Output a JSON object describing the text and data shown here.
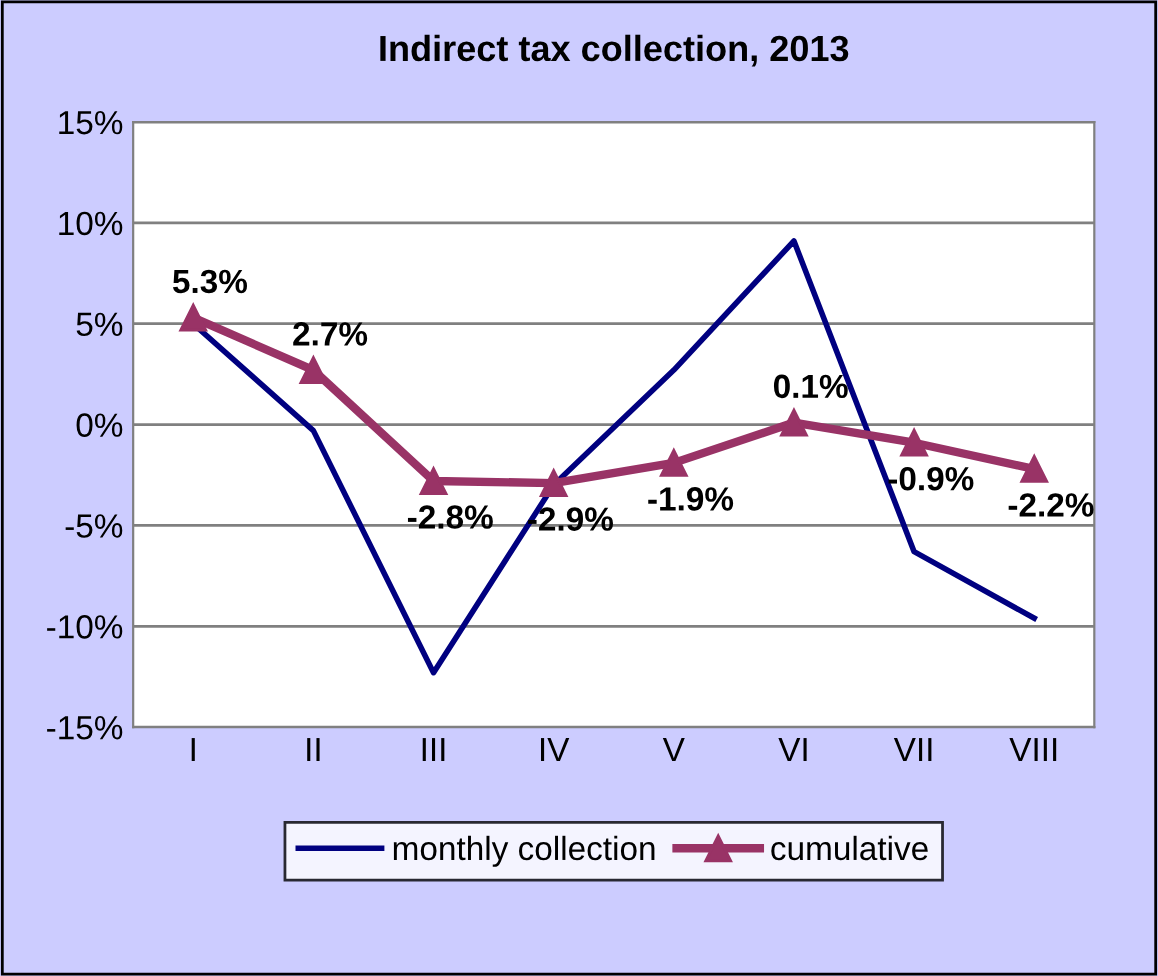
{
  "chart_data": {
    "type": "line",
    "title": "Indirect tax collection, 2013",
    "categories": [
      "I",
      "II",
      "III",
      "IV",
      "V",
      "VI",
      "VII",
      "VIII"
    ],
    "series": [
      {
        "name": "monthly collection",
        "color": "#000080",
        "marker": "none",
        "values": [
          5.0,
          -0.3,
          -12.3,
          -3.0,
          2.7,
          9.1,
          -6.3,
          -9.6
        ]
      },
      {
        "name": "cumulative",
        "color": "#993366",
        "marker": "triangle",
        "values": [
          5.3,
          2.7,
          -2.8,
          -2.9,
          -1.9,
          0.1,
          -0.9,
          -2.2
        ],
        "value_labels": [
          "5.3%",
          "2.7%",
          "-2.8%",
          "-2.9%",
          "-1.9%",
          "0.1%",
          "-0.9%",
          "-2.2%"
        ]
      }
    ],
    "ylim": [
      -15,
      15
    ],
    "yticks": [
      {
        "value": -15,
        "label": "-15%"
      },
      {
        "value": -10,
        "label": "-10%"
      },
      {
        "value": -5,
        "label": "-5%"
      },
      {
        "value": 0,
        "label": "0%"
      },
      {
        "value": 5,
        "label": "5%"
      },
      {
        "value": 10,
        "label": "10%"
      },
      {
        "value": 15,
        "label": "15%"
      }
    ],
    "grid": "y",
    "legend": "bottom",
    "line_style": "solid"
  }
}
